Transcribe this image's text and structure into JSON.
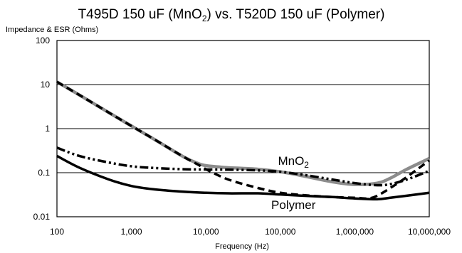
{
  "chart_data": {
    "type": "line",
    "title": {
      "part1": "T495D 150 uF (MnO",
      "sub": "2",
      "part2": ")  vs. T520D 150 uF (Polymer)"
    },
    "ylabel": "Impedance & ESR (Ohms)",
    "xlabel": "Frequency (Hz)",
    "x_scale": "log",
    "y_scale": "log",
    "xlim": [
      100,
      10000000
    ],
    "ylim": [
      0.01,
      100
    ],
    "x_ticks": [
      {
        "value": 100,
        "label": "100"
      },
      {
        "value": 1000,
        "label": "1,000"
      },
      {
        "value": 10000,
        "label": "10,000"
      },
      {
        "value": 100000,
        "label": "100,000"
      },
      {
        "value": 1000000,
        "label": "1,000,000"
      },
      {
        "value": 10000000,
        "label": "10,000,000"
      }
    ],
    "y_ticks": [
      {
        "value": 0.01,
        "label": "0.01"
      },
      {
        "value": 0.1,
        "label": "0.1"
      },
      {
        "value": 1,
        "label": "1"
      },
      {
        "value": 10,
        "label": "10"
      },
      {
        "value": 100,
        "label": "100"
      }
    ],
    "grid": "horizontal",
    "annotations": [
      {
        "text": "MnO",
        "sub": "2",
        "x": 150000,
        "y": 0.15
      },
      {
        "text": "Polymer",
        "sub": "",
        "x": 150000,
        "y": 0.015
      }
    ],
    "series": [
      {
        "style": "solid-gray",
        "color": "#8c8c8c",
        "x": [
          100,
          200,
          500,
          1000,
          2000,
          5000,
          8000,
          10000,
          15000,
          20000,
          50000,
          100000,
          200000,
          500000,
          1000000,
          2000000,
          3000000,
          5000000,
          10000000
        ],
        "y": [
          11.5,
          5.8,
          2.3,
          1.15,
          0.58,
          0.23,
          0.16,
          0.145,
          0.135,
          0.13,
          0.12,
          0.105,
          0.085,
          0.062,
          0.054,
          0.058,
          0.075,
          0.12,
          0.21
        ]
      },
      {
        "style": "dashed",
        "color": "#000000",
        "x": [
          100,
          200,
          500,
          1000,
          2000,
          5000,
          8000,
          10000,
          20000,
          50000,
          100000,
          200000,
          500000,
          1000000,
          1500000,
          2000000,
          3000000,
          5000000,
          10000000
        ],
        "y": [
          11.5,
          5.8,
          2.3,
          1.15,
          0.58,
          0.23,
          0.15,
          0.12,
          0.07,
          0.045,
          0.035,
          0.031,
          0.028,
          0.027,
          0.026,
          0.03,
          0.045,
          0.08,
          0.19
        ]
      },
      {
        "style": "dash-dot",
        "color": "#000000",
        "x": [
          100,
          200,
          500,
          1000,
          2000,
          5000,
          10000,
          20000,
          50000,
          100000,
          200000,
          500000,
          1000000,
          2000000,
          3000000,
          5000000,
          10000000
        ],
        "y": [
          0.37,
          0.24,
          0.17,
          0.14,
          0.128,
          0.12,
          0.118,
          0.117,
          0.113,
          0.105,
          0.09,
          0.07,
          0.058,
          0.052,
          0.055,
          0.07,
          0.11
        ]
      },
      {
        "style": "solid-thick",
        "color": "#000000",
        "x": [
          100,
          200,
          500,
          1000,
          2000,
          5000,
          10000,
          20000,
          50000,
          100000,
          200000,
          500000,
          1000000,
          2000000,
          3000000,
          5000000,
          10000000
        ],
        "y": [
          0.24,
          0.13,
          0.07,
          0.05,
          0.042,
          0.037,
          0.035,
          0.034,
          0.034,
          0.032,
          0.03,
          0.028,
          0.026,
          0.025,
          0.027,
          0.03,
          0.035
        ]
      }
    ]
  }
}
